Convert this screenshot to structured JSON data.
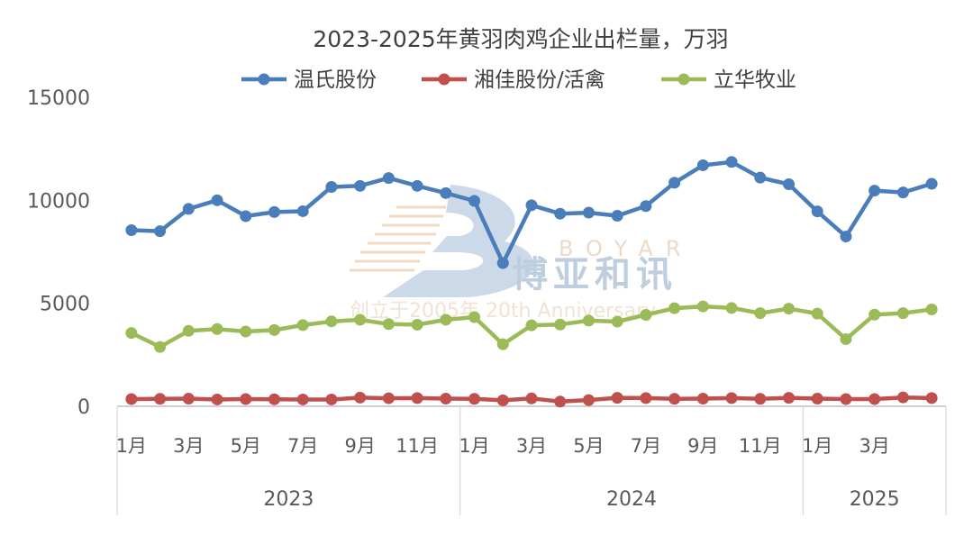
{
  "chart_data": {
    "type": "line",
    "title": "2023-2025年黄羽肉鸡企业出栏量，万羽",
    "xlabel": "",
    "ylabel": "",
    "ylim": [
      0,
      15000
    ],
    "yticks": [
      0,
      5000,
      10000,
      15000
    ],
    "grid": false,
    "legend_position": "top",
    "x": [
      "2023-01",
      "2023-02",
      "2023-03",
      "2023-04",
      "2023-05",
      "2023-06",
      "2023-07",
      "2023-08",
      "2023-09",
      "2023-10",
      "2023-11",
      "2023-12",
      "2024-01",
      "2024-02",
      "2024-03",
      "2024-04",
      "2024-05",
      "2024-06",
      "2024-07",
      "2024-08",
      "2024-09",
      "2024-10",
      "2024-11",
      "2024-12",
      "2025-01",
      "2025-02",
      "2025-03",
      "2025-04",
      "2025-05"
    ],
    "x_tick_labels": [
      "1月",
      "",
      "3月",
      "",
      "5月",
      "",
      "7月",
      "",
      "9月",
      "",
      "11月",
      "",
      "1月",
      "",
      "3月",
      "",
      "5月",
      "",
      "7月",
      "",
      "9月",
      "",
      "11月",
      "",
      "1月",
      "",
      "3月",
      "",
      ""
    ],
    "year_groups": [
      {
        "label": "2023",
        "count": 12
      },
      {
        "label": "2024",
        "count": 12
      },
      {
        "label": "2025",
        "count": 5
      }
    ],
    "series": [
      {
        "name": "温氏股份",
        "color": "#4a7ebb",
        "values": [
          8550,
          8500,
          9580,
          10000,
          9230,
          9430,
          9470,
          10650,
          10700,
          11080,
          10700,
          10350,
          9970,
          6950,
          9760,
          9350,
          9400,
          9250,
          9720,
          10850,
          11700,
          11860,
          11100,
          10780,
          9460,
          8240,
          10470,
          10380,
          10800
        ]
      },
      {
        "name": "湘佳股份/活禽",
        "color": "#c0504d",
        "values": [
          350,
          360,
          370,
          330,
          350,
          340,
          330,
          330,
          420,
          390,
          400,
          370,
          360,
          290,
          380,
          230,
          300,
          410,
          400,
          360,
          370,
          400,
          360,
          410,
          370,
          350,
          350,
          430,
          400
        ]
      },
      {
        "name": "立华牧业",
        "color": "#9bbb59",
        "values": [
          3560,
          2880,
          3660,
          3750,
          3630,
          3700,
          3940,
          4120,
          4200,
          3990,
          3960,
          4200,
          4330,
          3010,
          3930,
          3970,
          4160,
          4110,
          4440,
          4760,
          4850,
          4770,
          4520,
          4740,
          4500,
          3260,
          4450,
          4520,
          4700
        ]
      }
    ]
  },
  "watermark": {
    "brand_en": "BOYAR",
    "brand_cn": "博亚和讯",
    "slogan": "创立于2005年 20th Anniversary"
  }
}
